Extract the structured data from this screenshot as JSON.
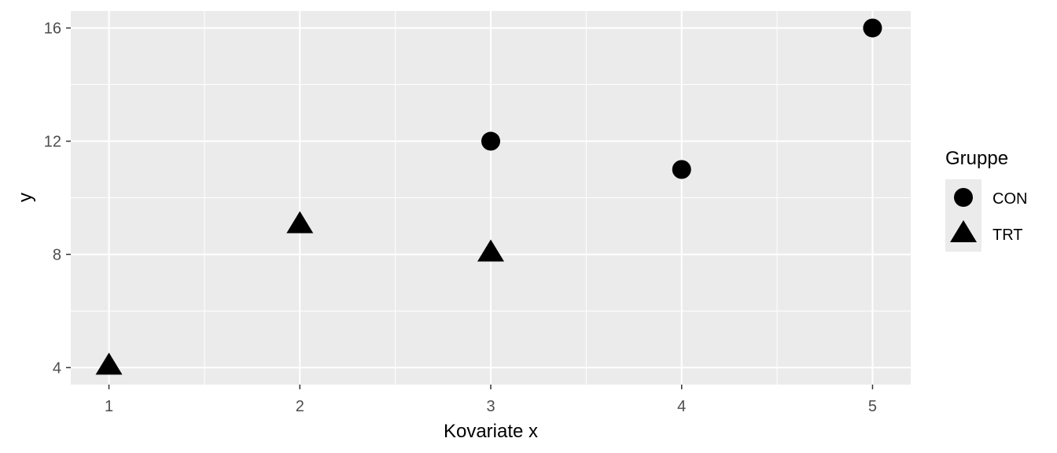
{
  "chart_data": {
    "type": "scatter",
    "xlabel": "Kovariate x",
    "ylabel": "y",
    "xlim": [
      0.8,
      5.2
    ],
    "ylim": [
      3.4,
      16.6
    ],
    "x_ticks": [
      1,
      2,
      3,
      4,
      5
    ],
    "x_tick_labels": [
      "1",
      "2",
      "3",
      "4",
      "5"
    ],
    "y_ticks": [
      4,
      8,
      12,
      16
    ],
    "y_tick_labels": [
      "4",
      "8",
      "12",
      "16"
    ],
    "grid": true,
    "panel_background": "#ebebeb",
    "grid_color": "#ffffff",
    "point_color": "#000000",
    "legend": {
      "title": "Gruppe",
      "position": "right"
    },
    "series": [
      {
        "name": "CON",
        "shape": "circle",
        "points": [
          {
            "x": 3,
            "y": 12
          },
          {
            "x": 4,
            "y": 11
          },
          {
            "x": 5,
            "y": 16
          }
        ]
      },
      {
        "name": "TRT",
        "shape": "triangle",
        "points": [
          {
            "x": 1,
            "y": 4
          },
          {
            "x": 2,
            "y": 9
          },
          {
            "x": 3,
            "y": 8
          }
        ]
      }
    ]
  }
}
